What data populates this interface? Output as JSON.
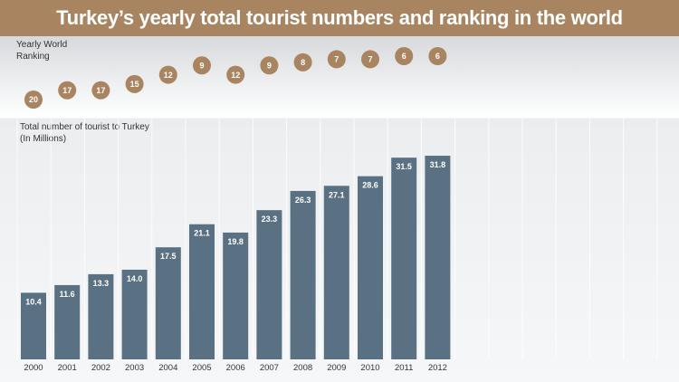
{
  "title": "Turkey’s yearly total tourist numbers and ranking in the world",
  "ranking_label": "Yearly World\nRanking",
  "tourists_label": "Total number of tourist to Turkey\n(In Millions)",
  "colors": {
    "title_bar": "#a98460",
    "bar": "#5a7083",
    "rank_circle": "#a98460"
  },
  "chart_data": {
    "type": "bar",
    "categories": [
      "2000",
      "2001",
      "2002",
      "2003",
      "2004",
      "2005",
      "2006",
      "2007",
      "2008",
      "2009",
      "2010",
      "2011",
      "2012"
    ],
    "values": [
      10.4,
      11.6,
      13.3,
      14.0,
      17.5,
      21.1,
      19.8,
      23.3,
      26.3,
      27.1,
      28.6,
      31.5,
      31.8
    ],
    "value_labels": [
      "10.4",
      "11.6",
      "13.3",
      "14.0",
      "17.5",
      "21.1",
      "19.8",
      "23.3",
      "26.3",
      "27.1",
      "28.6",
      "31.5",
      "31.8"
    ],
    "rankings": [
      20,
      17,
      17,
      15,
      12,
      9,
      12,
      9,
      8,
      7,
      7,
      6,
      6
    ],
    "ylim": [
      0,
      33.5
    ],
    "grid": true
  }
}
